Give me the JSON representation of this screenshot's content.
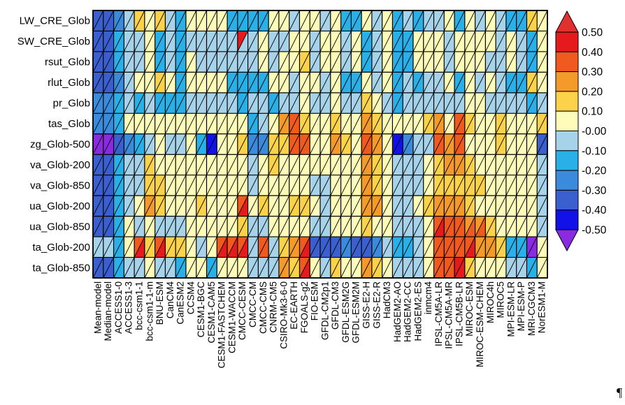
{
  "chart_data": {
    "type": "heatmap",
    "title": "",
    "xlabel": "",
    "ylabel": "",
    "rows": [
      "LW_CRE_Glob",
      "SW_CRE_Glob",
      "rsut_Glob",
      "rlut_Glob",
      "pr_Glob",
      "tas_Glob",
      "zg_Glob-500",
      "va_Glob-200",
      "va_Glob-850",
      "ua_Glob-200",
      "ua_Glob-850",
      "ta_Glob-200",
      "ta_Glob-850"
    ],
    "columns": [
      "Mean-model",
      "Median-model",
      "ACCESS1-0",
      "ACCESS1-3",
      "bcc-csm1-1",
      "bcc-csm1-1-m",
      "BNU-ESM",
      "CanCM4",
      "CanESM2",
      "CCSM4",
      "CESM1-BGC",
      "CESM1-CAM5",
      "CESM1-FASTCHEM",
      "CESM1-WACCM",
      "CMCC-CESM",
      "CMCC-CM",
      "CMCC-CMS",
      "CNRM-CM5",
      "CSIRO-Mk3-6-0",
      "EC-EARTH",
      "FGOALS-g2",
      "FIO-ESM",
      "GFDL-CM2p1",
      "GFDL-CM3",
      "GFDL-ESM2G",
      "GFDL-ESM2M",
      "GISS-E2-H",
      "GISS-E2-R",
      "HadCM3",
      "HadGEM2-AO",
      "HadGEM2-CC",
      "HadGEM2-ES",
      "inmcm4",
      "IPSL-CM5A-LR",
      "IPSL-CM5A-MR",
      "IPSL-CM5B-LR",
      "MIROC-ESM",
      "MIROC-ESM-CHEM",
      "MIROC4h",
      "MIROC5",
      "MPI-ESM-LR",
      "MPI-ESM-P",
      "MRI-CGCM3",
      "NorESM1-M"
    ],
    "cell_split": "diagonal",
    "values_upper": [
      [
        -0.35,
        -0.35,
        -0.25,
        -0.05,
        0.15,
        0.05,
        0.15,
        -0.05,
        -0.15,
        0.05,
        0.05,
        0.05,
        0.05,
        -0.15,
        -0.15,
        -0.15,
        -0.15,
        0.05,
        0.05,
        -0.05,
        0.05,
        0.05,
        -0.05,
        0.05,
        -0.15,
        -0.15,
        0.05,
        -0.05,
        0.05,
        -0.15,
        -0.05,
        -0.15,
        -0.05,
        -0.05,
        0.05,
        -0.15,
        0.05,
        -0.05,
        0.05,
        -0.05,
        -0.15,
        -0.15,
        0.15,
        0.05
      ],
      [
        -0.3,
        -0.3,
        -0.15,
        -0.05,
        -0.05,
        0.05,
        -0.15,
        -0.05,
        -0.15,
        -0.05,
        -0.05,
        -0.05,
        -0.05,
        -0.05,
        0.45,
        -0.05,
        0.05,
        -0.05,
        -0.05,
        0.05,
        0.05,
        -0.05,
        0.05,
        0.05,
        -0.05,
        0.05,
        -0.15,
        -0.05,
        0.05,
        -0.15,
        -0.15,
        0.05,
        0.05,
        0.05,
        -0.05,
        0.05,
        0.05,
        0.05,
        0.05,
        -0.05,
        0.05,
        -0.05,
        -0.15,
        0.05
      ],
      [
        -0.3,
        -0.3,
        -0.15,
        -0.05,
        -0.05,
        0.05,
        -0.15,
        -0.05,
        -0.15,
        0.05,
        -0.05,
        -0.05,
        -0.05,
        -0.05,
        -0.05,
        -0.05,
        0.05,
        -0.05,
        0.05,
        0.05,
        0.15,
        -0.05,
        0.05,
        0.05,
        -0.05,
        0.05,
        -0.15,
        -0.05,
        0.05,
        -0.15,
        -0.15,
        0.05,
        0.05,
        0.05,
        -0.05,
        0.05,
        0.05,
        0.05,
        -0.05,
        -0.05,
        0.05,
        -0.05,
        -0.15,
        0.05
      ],
      [
        -0.35,
        -0.35,
        -0.2,
        -0.05,
        0.05,
        0.05,
        0.15,
        0.05,
        -0.15,
        0.05,
        0.05,
        0.05,
        0.05,
        -0.15,
        -0.15,
        -0.15,
        -0.15,
        0.05,
        0.05,
        -0.05,
        0.05,
        0.05,
        -0.05,
        0.05,
        -0.15,
        -0.15,
        0.05,
        -0.05,
        0.05,
        -0.15,
        -0.05,
        -0.15,
        -0.05,
        -0.05,
        0.05,
        -0.15,
        0.05,
        -0.05,
        0.05,
        -0.05,
        -0.15,
        -0.15,
        0.15,
        0.05
      ],
      [
        -0.25,
        -0.25,
        -0.15,
        -0.05,
        -0.15,
        -0.05,
        -0.15,
        -0.15,
        -0.15,
        -0.05,
        -0.05,
        -0.05,
        -0.05,
        -0.05,
        -0.15,
        -0.05,
        -0.05,
        -0.15,
        -0.05,
        -0.05,
        0.05,
        -0.05,
        -0.05,
        0.05,
        -0.05,
        -0.05,
        0.15,
        0.05,
        -0.05,
        -0.15,
        -0.05,
        -0.05,
        -0.05,
        -0.05,
        -0.05,
        -0.05,
        0.05,
        0.05,
        -0.05,
        -0.05,
        -0.05,
        -0.05,
        -0.15,
        -0.05
      ],
      [
        -0.25,
        -0.25,
        -0.15,
        0.05,
        0.05,
        0.05,
        0.05,
        0.05,
        0.05,
        0.05,
        0.05,
        0.05,
        0.05,
        0.05,
        0.05,
        -0.15,
        -0.05,
        0.05,
        0.25,
        0.35,
        0.15,
        0.05,
        0.05,
        0.15,
        0.05,
        0.05,
        0.25,
        0.15,
        0.05,
        0.05,
        0.05,
        0.05,
        0.15,
        0.25,
        0.05,
        0.4,
        0.15,
        0.05,
        0.05,
        0.15,
        0.05,
        0.05,
        0.05,
        0.15
      ],
      [
        -0.5,
        -0.5,
        -0.35,
        -0.25,
        -0.15,
        -0.05,
        0.05,
        -0.05,
        -0.05,
        0.05,
        -0.15,
        -0.45,
        0.05,
        0.05,
        0.15,
        -0.25,
        -0.25,
        0.15,
        0.15,
        0.35,
        0.4,
        0.05,
        0.05,
        0.3,
        0.15,
        0.05,
        0.35,
        0.25,
        0.05,
        -0.45,
        -0.25,
        -0.05,
        -0.05,
        0.35,
        0.3,
        0.35,
        0.05,
        0.05,
        0.05,
        0.15,
        0.05,
        0.05,
        0.05,
        -0.35
      ],
      [
        -0.35,
        -0.35,
        -0.15,
        -0.05,
        -0.05,
        0.15,
        0.05,
        0.05,
        0.05,
        0.05,
        0.05,
        0.05,
        0.05,
        0.05,
        0.05,
        -0.05,
        0.05,
        0.15,
        0.05,
        0.05,
        0.05,
        0.05,
        0.05,
        0.05,
        0.05,
        0.05,
        0.25,
        0.15,
        0.05,
        -0.05,
        -0.05,
        -0.05,
        0.05,
        0.15,
        0.25,
        0.25,
        0.15,
        0.05,
        0.05,
        0.05,
        0.05,
        0.05,
        0.05,
        -0.05
      ],
      [
        -0.35,
        -0.35,
        -0.15,
        -0.05,
        -0.05,
        0.15,
        0.15,
        0.05,
        0.05,
        0.05,
        0.05,
        0.05,
        0.05,
        0.05,
        0.05,
        -0.05,
        0.05,
        0.05,
        0.05,
        0.05,
        0.05,
        -0.05,
        -0.05,
        0.05,
        0.05,
        0.05,
        0.25,
        0.15,
        0.05,
        -0.05,
        -0.05,
        -0.05,
        0.05,
        0.15,
        0.2,
        0.2,
        0.15,
        0.15,
        0.05,
        0.05,
        0.05,
        0.05,
        0.05,
        -0.05
      ],
      [
        -0.35,
        -0.35,
        -0.15,
        -0.05,
        0.05,
        0.25,
        0.15,
        0.05,
        0.05,
        0.05,
        0.15,
        0.05,
        0.05,
        0.05,
        0.35,
        0.05,
        0.15,
        0.05,
        0.05,
        0.15,
        0.15,
        0.05,
        -0.05,
        0.05,
        0.05,
        0.05,
        0.25,
        0.25,
        0.05,
        -0.05,
        -0.05,
        0.05,
        0.15,
        0.3,
        0.3,
        0.3,
        0.15,
        0.05,
        0.05,
        0.05,
        0.05,
        0.05,
        0.05,
        -0.05
      ],
      [
        -0.35,
        -0.35,
        -0.15,
        0.05,
        -0.05,
        0.05,
        -0.05,
        -0.05,
        -0.05,
        0.05,
        0.05,
        0.05,
        0.05,
        0.05,
        0.15,
        -0.05,
        -0.05,
        0.05,
        0.05,
        0.05,
        0.05,
        -0.05,
        -0.05,
        0.05,
        0.05,
        0.05,
        0.15,
        0.05,
        0.05,
        -0.05,
        -0.05,
        -0.05,
        0.05,
        0.35,
        0.35,
        0.35,
        0.3,
        0.3,
        0.15,
        0.05,
        0.05,
        0.05,
        0.05,
        -0.05
      ],
      [
        -0.05,
        -0.05,
        -0.15,
        0.05,
        0.35,
        0.15,
        0.35,
        0.15,
        0.15,
        0.05,
        -0.05,
        0.05,
        0.35,
        0.4,
        0.35,
        -0.05,
        0.35,
        -0.05,
        0.15,
        0.25,
        0.35,
        -0.35,
        -0.35,
        -0.35,
        -0.25,
        -0.35,
        -0.35,
        -0.25,
        -0.05,
        -0.15,
        -0.15,
        -0.05,
        0.05,
        0.35,
        0.35,
        0.35,
        0.4,
        0.3,
        0.3,
        0.15,
        -0.15,
        -0.15,
        -0.6,
        0.05
      ],
      [
        -0.3,
        -0.3,
        -0.15,
        -0.05,
        -0.05,
        0.05,
        -0.05,
        -0.05,
        -0.15,
        0.05,
        0.05,
        -0.15,
        0.05,
        0.05,
        0.05,
        -0.05,
        -0.05,
        -0.05,
        0.25,
        0.15,
        0.4,
        0.05,
        -0.05,
        0.15,
        0.05,
        0.05,
        0.25,
        0.15,
        0.05,
        -0.05,
        -0.05,
        -0.05,
        0.05,
        0.35,
        0.35,
        0.45,
        0.15,
        0.05,
        0.05,
        0.05,
        -0.05,
        -0.05,
        -0.15,
        0.05
      ]
    ],
    "values_lower": [
      [
        -0.35,
        -0.35,
        -0.25,
        -0.05,
        0.15,
        0.05,
        0.15,
        -0.05,
        -0.15,
        0.05,
        0.05,
        0.05,
        0.05,
        -0.15,
        -0.15,
        -0.15,
        -0.15,
        0.05,
        0.05,
        -0.05,
        0.05,
        0.05,
        -0.05,
        0.05,
        -0.15,
        -0.15,
        0.05,
        -0.05,
        0.05,
        -0.15,
        -0.05,
        -0.15,
        -0.05,
        -0.05,
        0.05,
        -0.15,
        0.05,
        -0.05,
        0.05,
        -0.05,
        -0.15,
        -0.15,
        0.15,
        0.05
      ],
      [
        -0.3,
        -0.3,
        -0.15,
        -0.05,
        -0.05,
        0.05,
        -0.15,
        -0.05,
        -0.15,
        -0.05,
        -0.05,
        -0.05,
        -0.05,
        -0.05,
        -0.05,
        -0.05,
        0.05,
        -0.05,
        -0.05,
        0.05,
        0.05,
        -0.05,
        0.05,
        0.05,
        -0.05,
        0.05,
        -0.15,
        -0.05,
        0.05,
        -0.15,
        -0.15,
        0.05,
        0.05,
        0.05,
        -0.05,
        0.05,
        0.05,
        0.05,
        0.05,
        -0.05,
        0.05,
        -0.05,
        -0.15,
        0.05
      ],
      [
        -0.3,
        -0.3,
        -0.15,
        -0.05,
        -0.05,
        0.05,
        -0.15,
        -0.05,
        -0.15,
        0.05,
        -0.05,
        -0.05,
        -0.05,
        -0.05,
        -0.05,
        -0.05,
        0.05,
        -0.05,
        0.05,
        0.05,
        0.15,
        -0.05,
        0.05,
        0.05,
        -0.05,
        0.05,
        -0.15,
        -0.05,
        0.05,
        -0.15,
        -0.15,
        0.05,
        0.05,
        0.05,
        -0.05,
        0.05,
        0.05,
        0.05,
        -0.05,
        -0.05,
        0.05,
        -0.05,
        -0.15,
        0.05
      ],
      [
        -0.35,
        -0.35,
        -0.2,
        -0.05,
        0.05,
        0.05,
        0.15,
        0.05,
        -0.15,
        0.05,
        0.05,
        0.05,
        0.05,
        -0.15,
        -0.15,
        -0.15,
        -0.15,
        0.05,
        0.05,
        -0.05,
        0.05,
        0.05,
        -0.05,
        0.05,
        -0.15,
        -0.15,
        0.05,
        -0.05,
        0.05,
        -0.15,
        -0.05,
        -0.15,
        -0.05,
        -0.05,
        0.05,
        -0.15,
        0.05,
        -0.05,
        0.05,
        -0.05,
        -0.15,
        -0.15,
        0.15,
        0.05
      ],
      [
        -0.25,
        -0.25,
        -0.15,
        -0.05,
        -0.15,
        -0.05,
        -0.15,
        -0.15,
        -0.15,
        -0.05,
        -0.05,
        -0.05,
        -0.05,
        -0.05,
        -0.15,
        -0.05,
        -0.05,
        -0.15,
        -0.05,
        -0.05,
        0.05,
        -0.05,
        -0.05,
        0.05,
        -0.05,
        -0.05,
        0.15,
        0.05,
        -0.05,
        -0.15,
        -0.05,
        -0.05,
        -0.05,
        -0.05,
        -0.05,
        -0.05,
        0.05,
        0.05,
        -0.05,
        -0.05,
        -0.05,
        -0.05,
        -0.15,
        -0.05
      ],
      [
        -0.25,
        -0.25,
        -0.15,
        0.05,
        0.05,
        0.05,
        0.05,
        0.05,
        0.05,
        0.05,
        0.05,
        0.05,
        0.05,
        0.05,
        0.05,
        -0.15,
        -0.05,
        0.05,
        0.25,
        0.35,
        0.15,
        0.05,
        0.05,
        0.15,
        0.05,
        0.05,
        0.25,
        0.15,
        0.05,
        0.05,
        0.05,
        0.05,
        0.15,
        0.25,
        0.05,
        0.4,
        0.15,
        0.05,
        0.05,
        0.15,
        0.05,
        0.05,
        0.05,
        0.15
      ],
      [
        -0.5,
        -0.5,
        -0.35,
        -0.25,
        -0.15,
        -0.05,
        0.05,
        -0.05,
        -0.05,
        0.05,
        -0.15,
        -0.45,
        0.05,
        0.05,
        0.15,
        -0.25,
        -0.25,
        0.15,
        0.15,
        0.35,
        0.4,
        0.05,
        0.05,
        0.3,
        0.15,
        0.05,
        0.35,
        0.25,
        0.05,
        -0.45,
        -0.25,
        -0.05,
        -0.05,
        0.35,
        0.3,
        0.35,
        0.05,
        0.05,
        0.05,
        0.15,
        0.05,
        0.05,
        0.05,
        -0.35
      ],
      [
        -0.35,
        -0.35,
        -0.15,
        -0.05,
        -0.05,
        0.15,
        0.05,
        0.05,
        0.05,
        0.05,
        0.05,
        0.05,
        0.05,
        0.05,
        0.05,
        -0.05,
        0.05,
        0.15,
        0.05,
        0.05,
        0.05,
        0.05,
        0.05,
        0.05,
        0.05,
        0.05,
        0.25,
        0.15,
        0.05,
        -0.05,
        -0.05,
        -0.05,
        0.05,
        0.15,
        0.25,
        0.25,
        0.15,
        0.05,
        0.05,
        0.05,
        0.05,
        0.05,
        0.05,
        -0.05
      ],
      [
        -0.35,
        -0.35,
        -0.15,
        -0.05,
        -0.05,
        0.15,
        0.15,
        0.05,
        0.05,
        0.05,
        0.05,
        0.05,
        0.05,
        0.05,
        0.05,
        -0.05,
        0.05,
        0.05,
        0.05,
        0.05,
        0.05,
        -0.05,
        -0.05,
        0.05,
        0.05,
        0.05,
        0.25,
        0.15,
        0.05,
        -0.05,
        -0.05,
        -0.05,
        0.05,
        0.15,
        0.2,
        0.2,
        0.15,
        0.15,
        0.05,
        0.05,
        0.05,
        0.05,
        0.05,
        -0.05
      ],
      [
        -0.35,
        -0.35,
        -0.15,
        -0.05,
        0.05,
        0.25,
        0.15,
        0.05,
        0.05,
        0.05,
        0.15,
        0.05,
        0.05,
        0.05,
        0.45,
        0.05,
        0.15,
        0.05,
        0.05,
        0.15,
        0.15,
        0.05,
        -0.05,
        0.05,
        0.05,
        0.05,
        0.25,
        0.25,
        0.05,
        -0.05,
        -0.05,
        0.05,
        0.15,
        0.3,
        0.3,
        0.3,
        0.15,
        0.05,
        0.05,
        0.05,
        0.05,
        0.05,
        0.05,
        -0.05
      ],
      [
        -0.35,
        -0.35,
        -0.15,
        0.05,
        -0.05,
        0.05,
        -0.05,
        -0.05,
        -0.05,
        0.05,
        0.05,
        0.05,
        0.05,
        0.05,
        0.15,
        -0.05,
        -0.05,
        0.05,
        0.05,
        0.05,
        0.05,
        -0.05,
        -0.05,
        0.05,
        0.05,
        0.05,
        0.15,
        0.05,
        0.05,
        -0.05,
        -0.05,
        -0.05,
        0.05,
        0.45,
        0.35,
        0.35,
        0.35,
        0.35,
        0.15,
        0.05,
        0.05,
        0.05,
        0.05,
        -0.05
      ],
      [
        -0.05,
        -0.05,
        -0.15,
        0.05,
        0.45,
        0.15,
        0.45,
        0.15,
        0.15,
        0.05,
        -0.05,
        0.05,
        0.45,
        0.45,
        0.45,
        -0.05,
        0.35,
        -0.05,
        0.15,
        0.25,
        0.45,
        -0.35,
        -0.35,
        -0.35,
        -0.25,
        -0.35,
        -0.35,
        -0.25,
        -0.05,
        -0.15,
        -0.15,
        -0.05,
        0.05,
        0.35,
        0.35,
        0.35,
        0.45,
        0.3,
        0.3,
        0.15,
        -0.15,
        -0.15,
        -0.6,
        0.05
      ],
      [
        -0.3,
        -0.3,
        -0.15,
        -0.05,
        -0.05,
        0.05,
        -0.05,
        -0.05,
        -0.15,
        0.05,
        0.05,
        -0.15,
        0.05,
        0.05,
        0.05,
        -0.05,
        -0.05,
        -0.05,
        0.25,
        0.15,
        0.45,
        0.05,
        -0.05,
        0.15,
        0.05,
        0.05,
        0.25,
        0.15,
        0.05,
        -0.05,
        -0.05,
        -0.05,
        0.05,
        0.35,
        0.35,
        0.45,
        0.15,
        0.05,
        0.05,
        0.05,
        -0.05,
        -0.05,
        -0.15,
        0.05
      ]
    ],
    "colorbar": {
      "tick_labels": [
        "0.50",
        "0.40",
        "0.30",
        "0.20",
        "0.10",
        "-0.00",
        "-0.10",
        "-0.20",
        "-0.30",
        "-0.40",
        "-0.50"
      ],
      "levels": [
        0.5,
        0.4,
        0.3,
        0.2,
        0.1,
        0.0,
        -0.1,
        -0.2,
        -0.3,
        -0.4,
        -0.5
      ],
      "colors_top_to_bottom": [
        "#e03030",
        "#e41a1c",
        "#f05a1e",
        "#f39a2a",
        "#fbd24a",
        "#fefcb8",
        "#a6d2ea",
        "#29b0e8",
        "#3b8bdc",
        "#3c5fd0",
        "#1212e8",
        "#8a2be2"
      ],
      "extend": "both"
    },
    "grid": true,
    "legend": "right"
  },
  "page": {
    "pilcrow": "¶"
  }
}
